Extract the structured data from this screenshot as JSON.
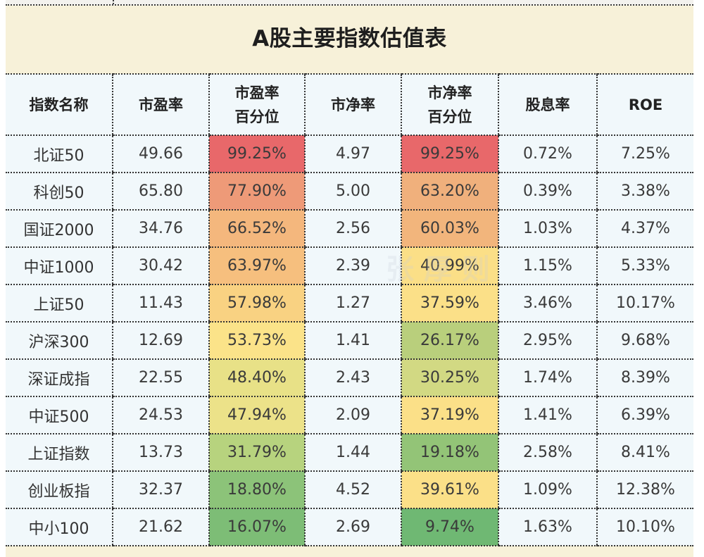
{
  "title": "A股主要指数估值表",
  "watermark": "张 厚 则",
  "columns": [
    {
      "key": "name",
      "label_lines": [
        "指数名称"
      ]
    },
    {
      "key": "pe",
      "label_lines": [
        "市盈率"
      ]
    },
    {
      "key": "pe_pct",
      "label_lines": [
        "市盈率",
        "百分位"
      ]
    },
    {
      "key": "pb",
      "label_lines": [
        "市净率"
      ]
    },
    {
      "key": "pb_pct",
      "label_lines": [
        "市净率",
        "百分位"
      ]
    },
    {
      "key": "dy",
      "label_lines": [
        "股息率"
      ]
    },
    {
      "key": "roe",
      "label_lines": [
        "ROE"
      ]
    }
  ],
  "rows": [
    {
      "name": "北证50",
      "pe": "49.66",
      "pe_pct": "99.25%",
      "pb": "4.97",
      "pb_pct": "99.25%",
      "dy": "0.72%",
      "roe": "7.25%",
      "pe_color": "#e8686a",
      "pb_color": "#e8686a"
    },
    {
      "name": "科创50",
      "pe": "65.80",
      "pe_pct": "77.90%",
      "pb": "5.00",
      "pb_pct": "63.20%",
      "dy": "0.39%",
      "roe": "3.38%",
      "pe_color": "#ee9a78",
      "pb_color": "#f0b07c"
    },
    {
      "name": "国证2000",
      "pe": "34.76",
      "pe_pct": "66.52%",
      "pb": "2.56",
      "pb_pct": "60.03%",
      "dy": "1.03%",
      "roe": "4.37%",
      "pe_color": "#f4b77d",
      "pb_color": "#f2b57c"
    },
    {
      "name": "中证1000",
      "pe": "30.42",
      "pe_pct": "63.97%",
      "pb": "2.39",
      "pb_pct": "40.99%",
      "dy": "1.15%",
      "roe": "5.33%",
      "pe_color": "#f6bf7e",
      "pb_color": "#fbdf87"
    },
    {
      "name": "上证50",
      "pe": "11.43",
      "pe_pct": "57.98%",
      "pb": "1.27",
      "pb_pct": "37.59%",
      "dy": "3.46%",
      "roe": "10.17%",
      "pe_color": "#f9d282",
      "pb_color": "#fbe088"
    },
    {
      "name": "沪深300",
      "pe": "12.69",
      "pe_pct": "53.73%",
      "pb": "1.41",
      "pb_pct": "26.17%",
      "dy": "2.95%",
      "roe": "9.68%",
      "pe_color": "#fbe389",
      "pb_color": "#b9cf7c"
    },
    {
      "name": "深证成指",
      "pe": "22.55",
      "pe_pct": "48.40%",
      "pb": "2.43",
      "pb_pct": "30.25%",
      "dy": "1.74%",
      "roe": "8.39%",
      "pe_color": "#e8e187",
      "pb_color": "#d2d983"
    },
    {
      "name": "中证500",
      "pe": "24.53",
      "pe_pct": "47.94%",
      "pb": "2.09",
      "pb_pct": "37.19%",
      "dy": "1.41%",
      "roe": "6.39%",
      "pe_color": "#ece289",
      "pb_color": "#fbe088"
    },
    {
      "name": "上证指数",
      "pe": "13.73",
      "pe_pct": "31.79%",
      "pb": "1.44",
      "pb_pct": "19.18%",
      "dy": "2.58%",
      "roe": "8.41%",
      "pe_color": "#b7d37e",
      "pb_color": "#93c477"
    },
    {
      "name": "创业板指",
      "pe": "32.37",
      "pe_pct": "18.80%",
      "pb": "4.52",
      "pb_pct": "39.61%",
      "dy": "1.09%",
      "roe": "12.38%",
      "pe_color": "#8cc379",
      "pb_color": "#fbe088"
    },
    {
      "name": "中小100",
      "pe": "21.62",
      "pe_pct": "16.07%",
      "pb": "2.69",
      "pb_pct": "9.74%",
      "dy": "1.63%",
      "roe": "10.10%",
      "pe_color": "#7dbd76",
      "pb_color": "#6fb873"
    }
  ]
}
